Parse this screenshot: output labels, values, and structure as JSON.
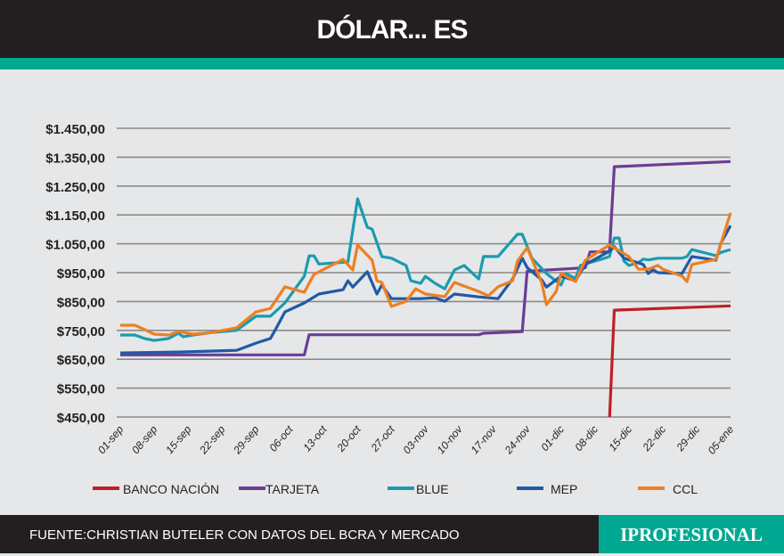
{
  "header": {
    "title": "DÓLAR... ES"
  },
  "footer": {
    "source": "FUENTE:CHRISTIAN BUTELER CON DATOS DEL BCRA Y MERCADO",
    "brand": "IPROFESIONAL"
  },
  "chart_data": {
    "type": "line",
    "title": "",
    "xlabel": "",
    "ylabel": "",
    "ylim": [
      450,
      1450
    ],
    "yticks": [
      "$450,00",
      "$550,00",
      "$650,00",
      "$750,00",
      "$850,00",
      "$950,00",
      "$1.050,00",
      "$1.150,00",
      "$1.250,00",
      "$1.350,00",
      "$1.450,00"
    ],
    "ytick_values": [
      450,
      550,
      650,
      750,
      850,
      950,
      1050,
      1150,
      1250,
      1350,
      1450
    ],
    "xticks": [
      "01-sep",
      "08-sep",
      "15-sep",
      "22-sep",
      "29-sep",
      "06-oct",
      "13-oct",
      "20-oct",
      "27-oct",
      "03-nov",
      "10-nov",
      "17-nov",
      "24-nov",
      "01-dic",
      "08-dic",
      "15-dic",
      "22-dic",
      "29-dic",
      "05-ene"
    ],
    "xlim": [
      "01-sep",
      "05-ene"
    ],
    "grid": true,
    "legend": "bottom",
    "series": [
      {
        "name": "BANCO NACIÓN",
        "color": "#be2026",
        "points": [
          [
            "11-dic",
            440
          ],
          [
            "12-dic",
            820
          ],
          [
            "05-ene",
            835
          ]
        ]
      },
      {
        "name": "TARJETA",
        "color": "#6a3d96",
        "points": [
          [
            "01-sep",
            665
          ],
          [
            "09-oct",
            665
          ],
          [
            "10-oct",
            735
          ],
          [
            "14-nov",
            735
          ],
          [
            "15-nov",
            740
          ],
          [
            "23-nov",
            746
          ],
          [
            "24-nov",
            955
          ],
          [
            "06-dic",
            967
          ],
          [
            "07-dic",
            1022
          ],
          [
            "11-dic",
            1022
          ],
          [
            "12-dic",
            1317
          ],
          [
            "05-ene",
            1335
          ]
        ]
      },
      {
        "name": "BLUE",
        "color": "#1a9bb0",
        "points": [
          [
            "01-sep",
            734
          ],
          [
            "04-sep",
            734
          ],
          [
            "06-sep",
            722
          ],
          [
            "08-sep",
            715
          ],
          [
            "11-sep",
            722
          ],
          [
            "13-sep",
            740
          ],
          [
            "14-sep",
            728
          ],
          [
            "16-sep",
            734
          ],
          [
            "20-sep",
            743
          ],
          [
            "25-sep",
            750
          ],
          [
            "29-sep",
            799
          ],
          [
            "02-oct",
            799
          ],
          [
            "05-oct",
            845
          ],
          [
            "09-oct",
            938
          ],
          [
            "10-oct",
            1008
          ],
          [
            "11-oct",
            1008
          ],
          [
            "12-oct",
            980
          ],
          [
            "18-oct",
            987
          ],
          [
            "20-oct",
            1206
          ],
          [
            "22-oct",
            1107
          ],
          [
            "23-oct",
            1101
          ],
          [
            "25-oct",
            1006
          ],
          [
            "27-oct",
            1000
          ],
          [
            "30-oct",
            975
          ],
          [
            "31-oct",
            922
          ],
          [
            "02-nov",
            913
          ],
          [
            "03-nov",
            937
          ],
          [
            "05-nov",
            913
          ],
          [
            "07-nov",
            894
          ],
          [
            "09-nov",
            959
          ],
          [
            "11-nov",
            975
          ],
          [
            "14-nov",
            928
          ],
          [
            "15-nov",
            1006
          ],
          [
            "18-nov",
            1006
          ],
          [
            "22-nov",
            1083
          ],
          [
            "23-nov",
            1083
          ],
          [
            "25-nov",
            1000
          ],
          [
            "28-nov",
            947
          ],
          [
            "01-dic",
            907
          ],
          [
            "02-dic",
            947
          ],
          [
            "04-dic",
            930
          ],
          [
            "05-dic",
            975
          ],
          [
            "10-dic",
            1000
          ],
          [
            "11-dic",
            1006
          ],
          [
            "12-dic",
            1070
          ],
          [
            "13-dic",
            1070
          ],
          [
            "14-dic",
            990
          ],
          [
            "15-dic",
            975
          ],
          [
            "17-dic",
            985
          ],
          [
            "18-dic",
            997
          ],
          [
            "19-dic",
            994
          ],
          [
            "21-dic",
            1000
          ],
          [
            "26-dic",
            1000
          ],
          [
            "27-dic",
            1006
          ],
          [
            "28-dic",
            1030
          ],
          [
            "02-ene",
            1009
          ],
          [
            "03-ene",
            1020
          ],
          [
            "05-ene",
            1030
          ]
        ]
      },
      {
        "name": "MEP",
        "color": "#1f5aa6",
        "points": [
          [
            "01-sep",
            672
          ],
          [
            "13-sep",
            675
          ],
          [
            "25-sep",
            681
          ],
          [
            "29-sep",
            706
          ],
          [
            "02-oct",
            722
          ],
          [
            "03-oct",
            752
          ],
          [
            "05-oct",
            814
          ],
          [
            "09-oct",
            845
          ],
          [
            "12-oct",
            876
          ],
          [
            "17-oct",
            891
          ],
          [
            "18-oct",
            922
          ],
          [
            "19-oct",
            900
          ],
          [
            "22-oct",
            953
          ],
          [
            "24-oct",
            876
          ],
          [
            "25-oct",
            907
          ],
          [
            "27-oct",
            860
          ],
          [
            "02-nov",
            860
          ],
          [
            "05-nov",
            863
          ],
          [
            "07-nov",
            851
          ],
          [
            "09-nov",
            876
          ],
          [
            "14-nov",
            866
          ],
          [
            "18-nov",
            860
          ],
          [
            "21-nov",
            928
          ],
          [
            "23-nov",
            1000
          ],
          [
            "24-nov",
            968
          ],
          [
            "27-nov",
            925
          ],
          [
            "28-nov",
            900
          ],
          [
            "01-dic",
            938
          ],
          [
            "04-dic",
            922
          ],
          [
            "06-dic",
            978
          ],
          [
            "11-dic",
            1024
          ],
          [
            "12-dic",
            1040
          ],
          [
            "14-dic",
            1000
          ],
          [
            "18-dic",
            978
          ],
          [
            "19-dic",
            947
          ],
          [
            "20-dic",
            960
          ],
          [
            "21-dic",
            950
          ],
          [
            "26-dic",
            947
          ],
          [
            "28-dic",
            1006
          ],
          [
            "02-ene",
            993
          ],
          [
            "03-ene",
            1052
          ],
          [
            "05-ene",
            1113
          ]
        ]
      },
      {
        "name": "CCL",
        "color": "#ee7f22",
        "points": [
          [
            "01-sep",
            768
          ],
          [
            "04-sep",
            768
          ],
          [
            "06-sep",
            753
          ],
          [
            "08-sep",
            737
          ],
          [
            "11-sep",
            734
          ],
          [
            "13-sep",
            746
          ],
          [
            "16-sep",
            737
          ],
          [
            "20-sep",
            743
          ],
          [
            "25-sep",
            759
          ],
          [
            "29-sep",
            814
          ],
          [
            "02-oct",
            826
          ],
          [
            "05-oct",
            901
          ],
          [
            "09-oct",
            882
          ],
          [
            "11-oct",
            944
          ],
          [
            "17-oct",
            996
          ],
          [
            "19-oct",
            959
          ],
          [
            "20-oct",
            1046
          ],
          [
            "23-oct",
            993
          ],
          [
            "24-oct",
            922
          ],
          [
            "25-oct",
            916
          ],
          [
            "27-oct",
            833
          ],
          [
            "30-oct",
            851
          ],
          [
            "01-nov",
            894
          ],
          [
            "03-nov",
            876
          ],
          [
            "07-nov",
            867
          ],
          [
            "09-nov",
            916
          ],
          [
            "14-nov",
            885
          ],
          [
            "16-nov",
            870
          ],
          [
            "18-nov",
            901
          ],
          [
            "21-nov",
            922
          ],
          [
            "22-nov",
            990
          ],
          [
            "24-nov",
            1036
          ],
          [
            "27-nov",
            916
          ],
          [
            "28-nov",
            839
          ],
          [
            "30-nov",
            885
          ],
          [
            "01-dic",
            947
          ],
          [
            "04-dic",
            919
          ],
          [
            "06-dic",
            993
          ],
          [
            "11-dic",
            1046
          ],
          [
            "15-dic",
            1006
          ],
          [
            "17-dic",
            962
          ],
          [
            "19-dic",
            962
          ],
          [
            "21-dic",
            975
          ],
          [
            "22-dic",
            962
          ],
          [
            "26-dic",
            938
          ],
          [
            "27-dic",
            919
          ],
          [
            "28-dic",
            978
          ],
          [
            "02-ene",
            996
          ],
          [
            "05-ene",
            1157
          ]
        ]
      }
    ]
  }
}
